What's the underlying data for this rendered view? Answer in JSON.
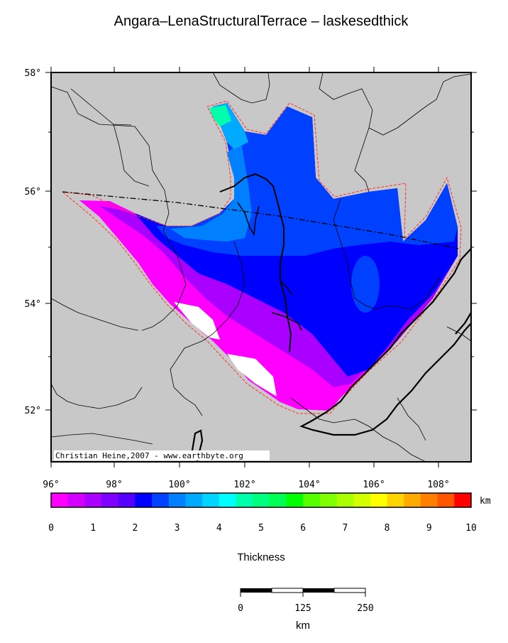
{
  "title": "Angara–LenaStructuralTerrace – laskesedthick",
  "credit": "Christian Heine,2007 - www.earthbyte.org",
  "latitude_labels": [
    "58°",
    "56°",
    "54°",
    "52°"
  ],
  "longitude_labels": [
    "96°",
    "98°",
    "100°",
    "102°",
    "104°",
    "106°",
    "108°"
  ],
  "colorbar": {
    "unit": "km",
    "tick_labels": [
      "0",
      "1",
      "2",
      "3",
      "4",
      "5",
      "6",
      "7",
      "8",
      "9",
      "10"
    ],
    "colors": [
      "#ff00ff",
      "#d400ff",
      "#aa00ff",
      "#7f00ff",
      "#5500ff",
      "#0000ff",
      "#0040ff",
      "#0080ff",
      "#00aaff",
      "#00d4ff",
      "#00ffff",
      "#00ffaa",
      "#00ff7f",
      "#00ff55",
      "#00ff00",
      "#55ff00",
      "#7fff00",
      "#aaff00",
      "#d4ff00",
      "#ffff00",
      "#ffd400",
      "#ffaa00",
      "#ff7f00",
      "#ff5500",
      "#ff0000"
    ],
    "label": "Thickness"
  },
  "scalebar": {
    "labels": [
      "0",
      "125",
      "250"
    ],
    "unit": "km"
  },
  "colors": {
    "land": "#c8c8c8",
    "outline": "#ff3030"
  }
}
